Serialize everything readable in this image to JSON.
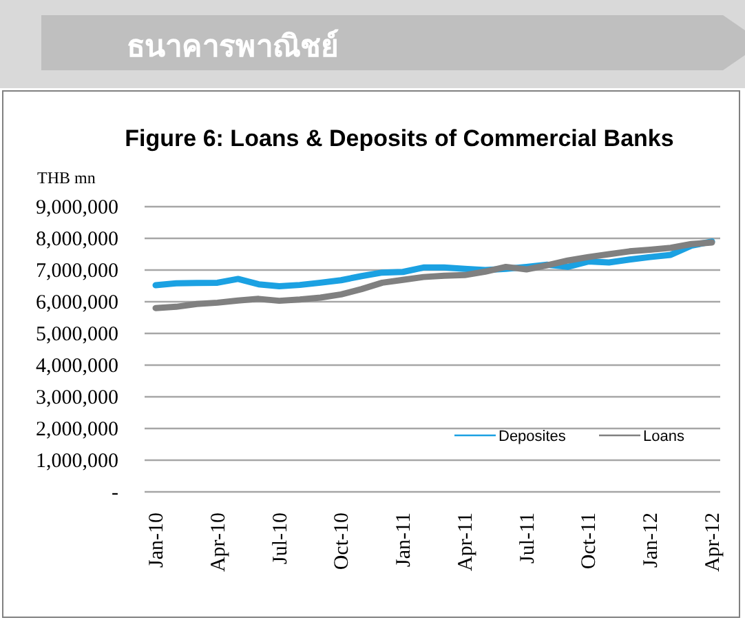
{
  "chart_data": {
    "type": "line",
    "title": "ธนาคารพาณิชย์",
    "subtitle": "Figure 6: Loans & Deposits of Commercial Banks",
    "ylabel": "THB mn",
    "categories": [
      "Jan-10",
      null,
      null,
      "Apr-10",
      null,
      null,
      "Jul-10",
      null,
      null,
      "Oct-10",
      null,
      null,
      "Jan-11",
      null,
      null,
      "Apr-11",
      null,
      null,
      "Jul-11",
      null,
      null,
      "Oct-11",
      null,
      null,
      "Jan-12",
      null,
      null,
      "Apr-12"
    ],
    "series": [
      {
        "name": "Deposites",
        "color": "#1ba1e2",
        "values": [
          6520000,
          6580000,
          6590000,
          6600000,
          6720000,
          6550000,
          6490000,
          6530000,
          6600000,
          6680000,
          6810000,
          6920000,
          6940000,
          7080000,
          7080000,
          7040000,
          7000000,
          7040000,
          7100000,
          7170000,
          7100000,
          7270000,
          7240000,
          7330000,
          7410000,
          7480000,
          7770000,
          7900000
        ]
      },
      {
        "name": "Loans",
        "color": "#808080",
        "values": [
          5800000,
          5840000,
          5930000,
          5970000,
          6040000,
          6090000,
          6030000,
          6070000,
          6130000,
          6230000,
          6400000,
          6600000,
          6690000,
          6780000,
          6820000,
          6840000,
          6950000,
          7100000,
          7020000,
          7150000,
          7300000,
          7410000,
          7500000,
          7590000,
          7640000,
          7700000,
          7820000,
          7870000
        ]
      }
    ],
    "ylim": [
      0,
      9000000
    ],
    "yticks": [
      {
        "value": 0,
        "label": "-"
      },
      {
        "value": 1000000,
        "label": "1,000,000"
      },
      {
        "value": 2000000,
        "label": "2,000,000"
      },
      {
        "value": 3000000,
        "label": "3,000,000"
      },
      {
        "value": 4000000,
        "label": "4,000,000"
      },
      {
        "value": 5000000,
        "label": "5,000,000"
      },
      {
        "value": 6000000,
        "label": "6,000,000"
      },
      {
        "value": 7000000,
        "label": "7,000,000"
      },
      {
        "value": 8000000,
        "label": "8,000,000"
      },
      {
        "value": 9000000,
        "label": "9,000,000"
      }
    ],
    "grid": "y",
    "legend": "bottom right"
  }
}
